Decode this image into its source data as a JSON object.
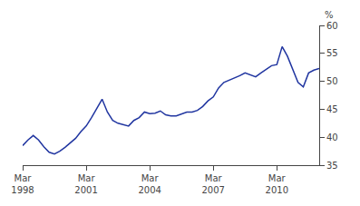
{
  "chart_data": {
    "type": "line",
    "ylabel": "%",
    "categories": [
      "Mar\n1998",
      null,
      null,
      null,
      null,
      null,
      null,
      null,
      null,
      null,
      null,
      null,
      "Mar\n2001",
      null,
      null,
      null,
      null,
      null,
      null,
      null,
      null,
      null,
      null,
      null,
      "Mar\n2004",
      null,
      null,
      null,
      null,
      null,
      null,
      null,
      null,
      null,
      null,
      null,
      "Mar\n2007",
      null,
      null,
      null,
      null,
      null,
      null,
      null,
      null,
      null,
      null,
      null,
      "Mar\n2010",
      null,
      null,
      null,
      null,
      null,
      null,
      null,
      null
    ],
    "values": [
      38.5,
      39.5,
      40.3,
      39.5,
      38.3,
      37.3,
      37.0,
      37.5,
      38.2,
      39.0,
      39.8,
      41.0,
      42.0,
      43.5,
      45.2,
      46.8,
      44.5,
      43.0,
      42.5,
      42.3,
      42.0,
      43.0,
      43.5,
      44.5,
      44.2,
      44.3,
      44.7,
      44.0,
      43.8,
      43.8,
      44.2,
      44.5,
      44.5,
      44.8,
      45.5,
      46.5,
      47.2,
      48.8,
      49.8,
      50.2,
      50.5,
      51.0,
      51.5,
      51.2,
      50.8,
      51.5,
      52.2,
      52.8,
      53.0,
      56.2,
      54.5,
      52.0,
      49.8,
      49.0,
      51.5,
      52.0,
      52.3
    ],
    "color": "#2035a0",
    "ylim": [
      35,
      60
    ],
    "yticks": [
      35,
      40,
      45,
      50,
      55,
      60
    ],
    "grid": false
  }
}
